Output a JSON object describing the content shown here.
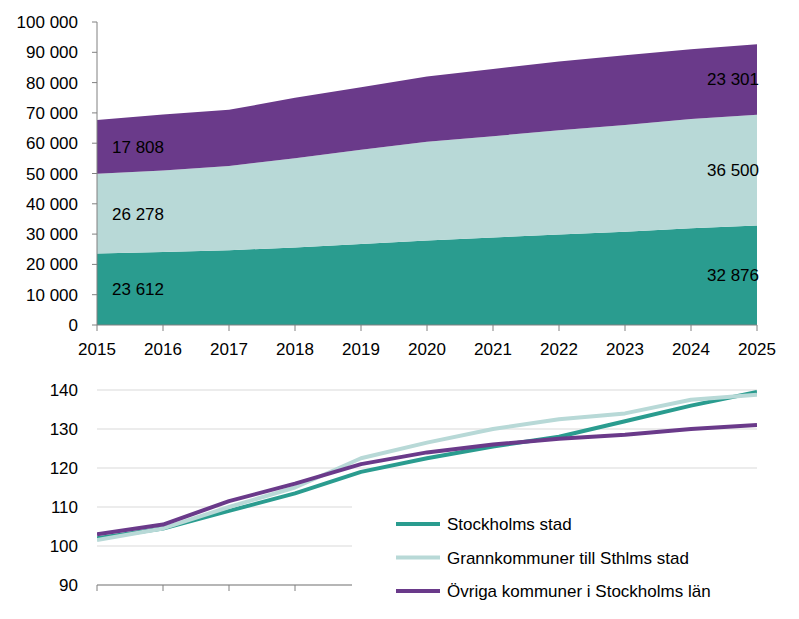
{
  "chart_data": [
    {
      "type": "area",
      "stacked": true,
      "grid": false,
      "data_labels": true,
      "x": [
        2015,
        2016,
        2017,
        2018,
        2019,
        2020,
        2021,
        2022,
        2023,
        2024,
        2025
      ],
      "xlim": [
        2015,
        2025
      ],
      "xticks": [
        2015,
        2016,
        2017,
        2018,
        2019,
        2020,
        2021,
        2022,
        2023,
        2024,
        2025
      ],
      "ylim": [
        0,
        100000
      ],
      "yticks": [
        0,
        {
          "value": 10000,
          "label": "10 000"
        },
        {
          "value": 20000,
          "label": "20 000"
        },
        {
          "value": 30000,
          "label": "30 000"
        },
        {
          "value": 40000,
          "label": "40 000"
        },
        {
          "value": 50000,
          "label": "50 000"
        },
        {
          "value": 60000,
          "label": "60 000"
        },
        {
          "value": 70000,
          "label": "70 000"
        },
        {
          "value": 80000,
          "label": "80 000"
        },
        {
          "value": 90000,
          "label": "90 000"
        },
        {
          "value": 100000,
          "label": "100 000"
        }
      ],
      "series": [
        {
          "color": "#2a9c8f",
          "values": [
            23612,
            24100,
            24700,
            25600,
            26700,
            27900,
            28900,
            29900,
            30800,
            31900,
            32876
          ],
          "value_labels": [
            "23 612",
            null,
            null,
            null,
            null,
            null,
            null,
            null,
            null,
            null,
            "32 876"
          ]
        },
        {
          "color": "#b8d9d7",
          "values": [
            26278,
            26900,
            27800,
            29400,
            31100,
            32600,
            33400,
            34400,
            35200,
            36100,
            36500
          ],
          "value_labels": [
            "26 278",
            null,
            null,
            null,
            null,
            null,
            null,
            null,
            null,
            null,
            "36 500"
          ]
        },
        {
          "color": "#6a3a8a",
          "values": [
            17808,
            18500,
            18500,
            20000,
            20700,
            21500,
            22200,
            22700,
            23000,
            23000,
            23301
          ],
          "value_labels": [
            "17 808",
            null,
            null,
            null,
            null,
            null,
            null,
            null,
            null,
            null,
            "23 301"
          ]
        }
      ]
    },
    {
      "type": "line",
      "grid": true,
      "tick_labels": "y",
      "legend": "lower right",
      "x": [
        2015,
        2016,
        2017,
        2018,
        2019,
        2020,
        2021,
        2022,
        2023,
        2024,
        2025
      ],
      "xlim": [
        2015,
        2025
      ],
      "xticks": [
        2015,
        2016,
        2017,
        2018
      ],
      "ylim": [
        90,
        140
      ],
      "yticks": [
        90,
        100,
        110,
        120,
        130,
        140
      ],
      "series": [
        {
          "name": "Stockholms stad",
          "color": "#2a9c8f",
          "values": [
            102,
            104.5,
            109,
            113.5,
            119,
            122.5,
            125.5,
            128,
            132,
            136,
            139.5
          ]
        },
        {
          "name": "Grannkommuner till Sthlms stad",
          "color": "#b8d9d7",
          "values": [
            101.5,
            104.5,
            110,
            115,
            122.5,
            126.5,
            130,
            132.5,
            134,
            137.5,
            138.8
          ]
        },
        {
          "name": "Övriga kommuner i Stockholms län",
          "color": "#6a3a8a",
          "values": [
            103,
            105.5,
            111.5,
            116,
            121,
            124,
            126,
            127.5,
            128.5,
            130,
            131
          ]
        }
      ]
    }
  ]
}
